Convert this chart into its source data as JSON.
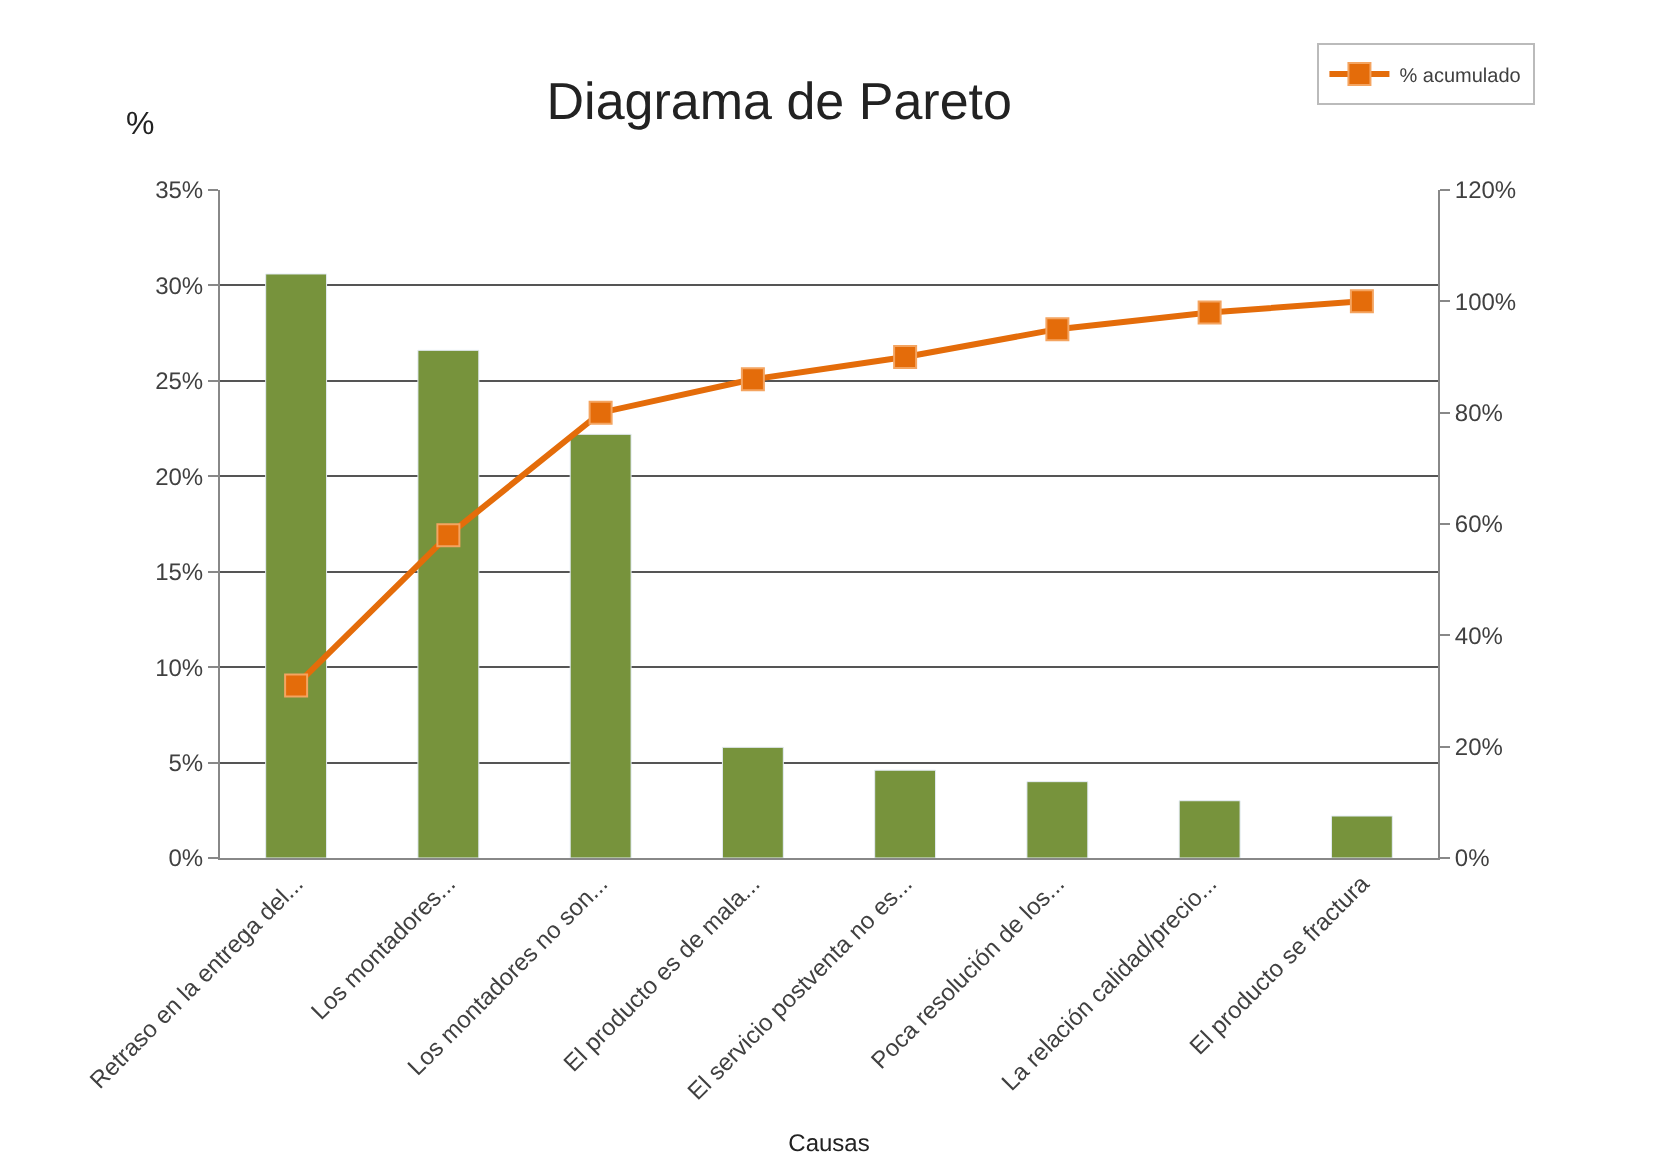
{
  "chart_data": {
    "type": "bar",
    "title": "Diagrama de Pareto",
    "xlabel": "Causas",
    "ylabel": "%",
    "categories": [
      "Retraso en la entrega del...",
      "Los montadores...",
      "Los montadores no son...",
      "El producto es de mala...",
      "El servicio postventa no es...",
      "Poca resolución de los...",
      "La relación calidad/precio...",
      "El producto se fractura"
    ],
    "series": [
      {
        "color": "#77933c",
        "values": [
          30.6,
          26.6,
          22.2,
          5.8,
          4.6,
          4.0,
          3.0,
          2.2
        ]
      },
      {
        "type": "line",
        "name": "% acumulado",
        "axis": "y2",
        "color": "#e46c0a",
        "marker": "square",
        "values": [
          31,
          58,
          80,
          86,
          90,
          95,
          98,
          100
        ]
      }
    ],
    "ylim": [
      0,
      35
    ],
    "yticks": [
      {
        "value": 0,
        "label": "0%"
      },
      {
        "value": 5,
        "label": "5%"
      },
      {
        "value": 10,
        "label": "10%"
      },
      {
        "value": 15,
        "label": "15%"
      },
      {
        "value": 20,
        "label": "20%"
      },
      {
        "value": 25,
        "label": "25%"
      },
      {
        "value": 30,
        "label": "30%"
      },
      {
        "value": 35,
        "label": "35%"
      }
    ],
    "y2lim": [
      0,
      120
    ],
    "y2ticks": [
      {
        "value": 0,
        "label": "0%"
      },
      {
        "value": 20,
        "label": "20%"
      },
      {
        "value": 40,
        "label": "40%"
      },
      {
        "value": 60,
        "label": "60%"
      },
      {
        "value": 80,
        "label": "80%"
      },
      {
        "value": 100,
        "label": "100%"
      },
      {
        "value": 120,
        "label": "120%"
      }
    ],
    "grid": "y",
    "legend": "top right"
  }
}
